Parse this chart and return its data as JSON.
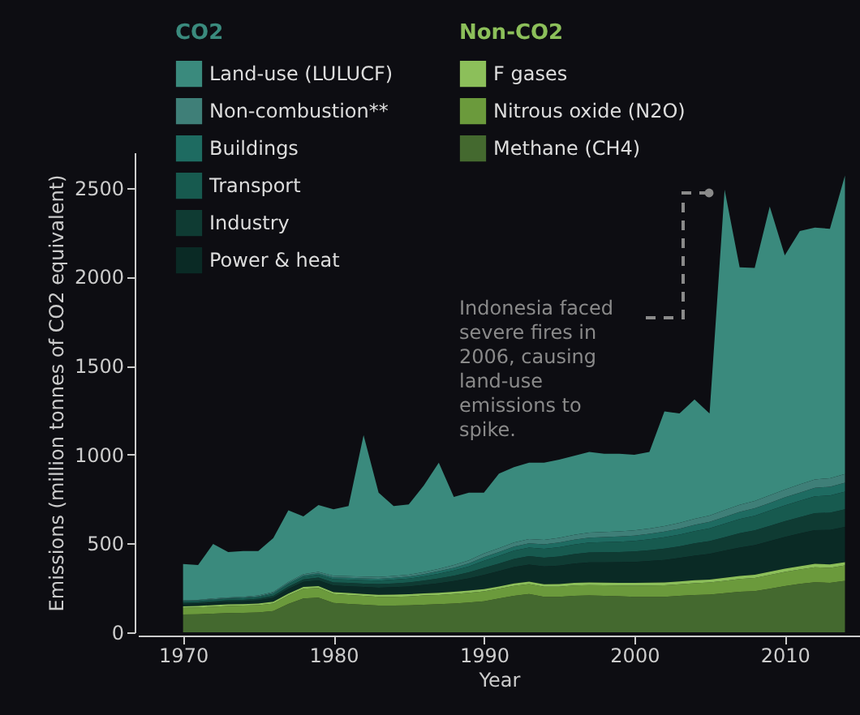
{
  "chart_data": {
    "type": "area",
    "stacked": true,
    "xlabel": "Year",
    "ylabel": "Emissions (million tonnes of CO2 equivalent)",
    "x": [
      1970,
      1971,
      1972,
      1973,
      1974,
      1975,
      1976,
      1977,
      1978,
      1979,
      1980,
      1981,
      1982,
      1983,
      1984,
      1985,
      1986,
      1987,
      1988,
      1989,
      1990,
      1991,
      1992,
      1993,
      1994,
      1995,
      1996,
      1997,
      1998,
      1999,
      2000,
      2001,
      2002,
      2003,
      2004,
      2005,
      2006,
      2007,
      2008,
      2009,
      2010,
      2011,
      2012,
      2013,
      2014
    ],
    "xlim": [
      1967,
      2015
    ],
    "xticks": [
      1970,
      1980,
      1990,
      2000,
      2010
    ],
    "ylim": [
      0,
      2700
    ],
    "yticks": [
      0,
      500,
      1000,
      1500,
      2000,
      2500
    ],
    "grid": false,
    "legend": "top left",
    "annotations": [
      "CO2",
      "Non-CO2",
      "Indonesia faced severe fires in 2006, causing land-use emissions to spike."
    ],
    "series": [
      {
        "name": "Methane (CH4)",
        "color": "#44692f",
        "values": [
          100,
          102,
          105,
          108,
          110,
          112,
          120,
          160,
          190,
          195,
          165,
          160,
          155,
          150,
          150,
          152,
          155,
          158,
          162,
          168,
          175,
          190,
          205,
          215,
          200,
          200,
          205,
          208,
          205,
          203,
          200,
          200,
          200,
          205,
          210,
          212,
          220,
          228,
          232,
          245,
          260,
          272,
          282,
          278,
          290
        ]
      },
      {
        "name": "Nitrous oxide (N2O)",
        "color": "#6b9a3c",
        "values": [
          38,
          38,
          39,
          40,
          40,
          41,
          42,
          48,
          55,
          55,
          50,
          50,
          50,
          50,
          50,
          50,
          52,
          52,
          53,
          54,
          55,
          55,
          56,
          56,
          56,
          57,
          58,
          58,
          59,
          60,
          62,
          63,
          64,
          65,
          66,
          68,
          70,
          72,
          74,
          78,
          80,
          82,
          84,
          85,
          86
        ]
      },
      {
        "name": "F gases",
        "color": "#8cbf5a",
        "values": [
          8,
          8,
          9,
          9,
          9,
          9,
          10,
          10,
          10,
          10,
          11,
          11,
          11,
          11,
          12,
          12,
          12,
          12,
          13,
          13,
          13,
          13,
          14,
          14,
          14,
          14,
          15,
          15,
          15,
          15,
          16,
          16,
          16,
          16,
          17,
          17,
          17,
          17,
          18,
          18,
          18,
          18,
          19,
          19,
          19
        ]
      },
      {
        "name": "Power & heat",
        "color": "#0a2a25",
        "values": [
          14,
          14,
          15,
          16,
          16,
          18,
          22,
          26,
          29,
          32,
          37,
          38,
          39,
          40,
          42,
          44,
          48,
          54,
          60,
          68,
          80,
          86,
          92,
          96,
          100,
          104,
          108,
          112,
          114,
          116,
          118,
          122,
          127,
          132,
          138,
          144,
          152,
          160,
          166,
          172,
          178,
          184,
          190,
          194,
          198
        ]
      },
      {
        "name": "Industry",
        "color": "#0f3b33",
        "values": [
          7,
          7,
          7,
          8,
          8,
          9,
          11,
          13,
          14,
          16,
          18,
          19,
          19,
          20,
          21,
          22,
          24,
          27,
          30,
          34,
          40,
          43,
          46,
          48,
          50,
          52,
          54,
          56,
          57,
          58,
          59,
          61,
          64,
          66,
          69,
          72,
          76,
          80,
          83,
          86,
          89,
          92,
          95,
          97,
          99
        ]
      },
      {
        "name": "Transport",
        "color": "#175a4f",
        "values": [
          7,
          7,
          7,
          8,
          8,
          9,
          11,
          13,
          14,
          16,
          18,
          19,
          19,
          20,
          21,
          22,
          24,
          27,
          30,
          34,
          40,
          43,
          46,
          48,
          50,
          52,
          54,
          56,
          57,
          58,
          59,
          61,
          64,
          66,
          69,
          72,
          76,
          80,
          83,
          86,
          89,
          92,
          95,
          97,
          99
        ]
      },
      {
        "name": "Buildings",
        "color": "#1e6b61",
        "values": [
          3,
          4,
          4,
          4,
          5,
          4,
          6,
          7,
          8,
          8,
          10,
          10,
          10,
          10,
          11,
          11,
          12,
          14,
          15,
          17,
          20,
          22,
          23,
          24,
          25,
          26,
          27,
          28,
          29,
          29,
          30,
          31,
          32,
          33,
          35,
          36,
          38,
          40,
          42,
          43,
          45,
          46,
          48,
          49,
          50
        ]
      },
      {
        "name": "Non-combustion**",
        "color": "#3f7f78",
        "values": [
          3,
          3,
          4,
          3,
          4,
          5,
          5,
          6,
          7,
          8,
          9,
          9,
          10,
          10,
          10,
          11,
          12,
          13,
          15,
          17,
          20,
          21,
          23,
          24,
          25,
          26,
          27,
          28,
          28,
          29,
          30,
          30,
          31,
          33,
          34,
          36,
          38,
          40,
          41,
          43,
          44,
          46,
          47,
          48,
          50
        ]
      },
      {
        "name": "Land-use (LULUCF)",
        "color": "#3a8a7d",
        "values": [
          204,
          195,
          307,
          255,
          257,
          250,
          303,
          403,
          325,
          376,
          374,
          394,
          796,
          475,
          393,
          395,
          487,
          597,
          384,
          381,
          343,
          420,
          424,
          429,
          434,
          441,
          445,
          454,
          441,
          437,
          425,
          431,
          645,
          615,
          672,
          574,
          1803,
          1337,
          1311,
          1625,
          1318,
          1426,
          1417,
          1403,
          1679
        ]
      }
    ]
  }
}
